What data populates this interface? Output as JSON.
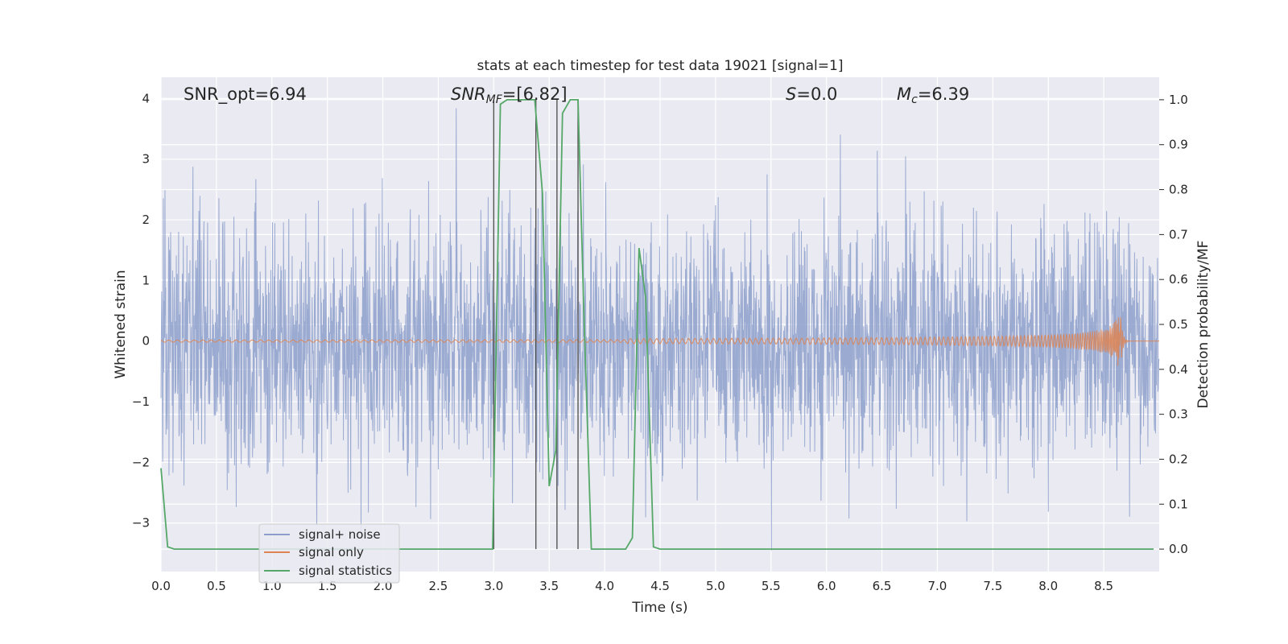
{
  "chart_data": {
    "type": "line",
    "title": "stats at each timestep for test data 19021 [signal=1]",
    "xlabel": "Time (s)",
    "ylabel_left": "Whitened strain",
    "ylabel_right": "Detection probability/MF",
    "xlim": [
      0,
      9.0
    ],
    "ylim_left": [
      -3.8,
      4.35
    ],
    "ylim_right": [
      -0.05,
      1.05
    ],
    "x_ticks": [
      "0.0",
      "0.5",
      "1.0",
      "1.5",
      "2.0",
      "2.5",
      "3.0",
      "3.5",
      "4.0",
      "4.5",
      "5.0",
      "5.5",
      "6.0",
      "6.5",
      "7.0",
      "7.5",
      "8.0",
      "8.5"
    ],
    "y_ticks_left": [
      "−3",
      "−2",
      "−1",
      "0",
      "1",
      "2",
      "3",
      "4"
    ],
    "y_ticks_right": [
      "0.0",
      "0.1",
      "0.2",
      "0.3",
      "0.4",
      "0.5",
      "0.6",
      "0.7",
      "0.8",
      "0.9",
      "1.0"
    ],
    "grid": true,
    "legend_position": "lower-left",
    "annotations": {
      "snr_opt": "SNR_opt=6.94",
      "snr_mf_prefix": "SNR",
      "snr_mf_sub": "MF",
      "snr_mf_value": "=[6.82]",
      "s_label": "S",
      "s_value": "=0.0",
      "mc_label": "M",
      "mc_sub": "c",
      "mc_value": "=6.39"
    },
    "vertical_lines_x": [
      3.0,
      3.38,
      3.57,
      3.76
    ],
    "series": [
      {
        "name": "signal+ noise",
        "color": "#8c9fcb",
        "axis": "left",
        "kind": "noise",
        "approx_std": 1.0,
        "x_range": [
          0,
          9.0
        ]
      },
      {
        "name": "signal only",
        "color": "#dd8452",
        "axis": "left",
        "kind": "chirp",
        "x_range": [
          0,
          8.65
        ],
        "peak_amplitude": 0.6,
        "merger_time": 8.65
      },
      {
        "name": "signal statistics",
        "color": "#55a868",
        "axis": "right",
        "x": [
          0.0,
          0.06,
          0.12,
          2.99,
          3.06,
          3.12,
          3.37,
          3.44,
          3.5,
          3.56,
          3.62,
          3.69,
          3.76,
          3.81,
          3.88,
          4.19,
          4.25,
          4.31,
          4.37,
          4.44,
          4.5,
          8.95
        ],
        "values": [
          0.18,
          0.005,
          0.0,
          0.0,
          0.99,
          1.0,
          1.0,
          0.79,
          0.14,
          0.22,
          0.97,
          1.0,
          1.0,
          0.55,
          0.0,
          0.0,
          0.025,
          0.67,
          0.56,
          0.005,
          0.0,
          0.0
        ]
      }
    ]
  }
}
